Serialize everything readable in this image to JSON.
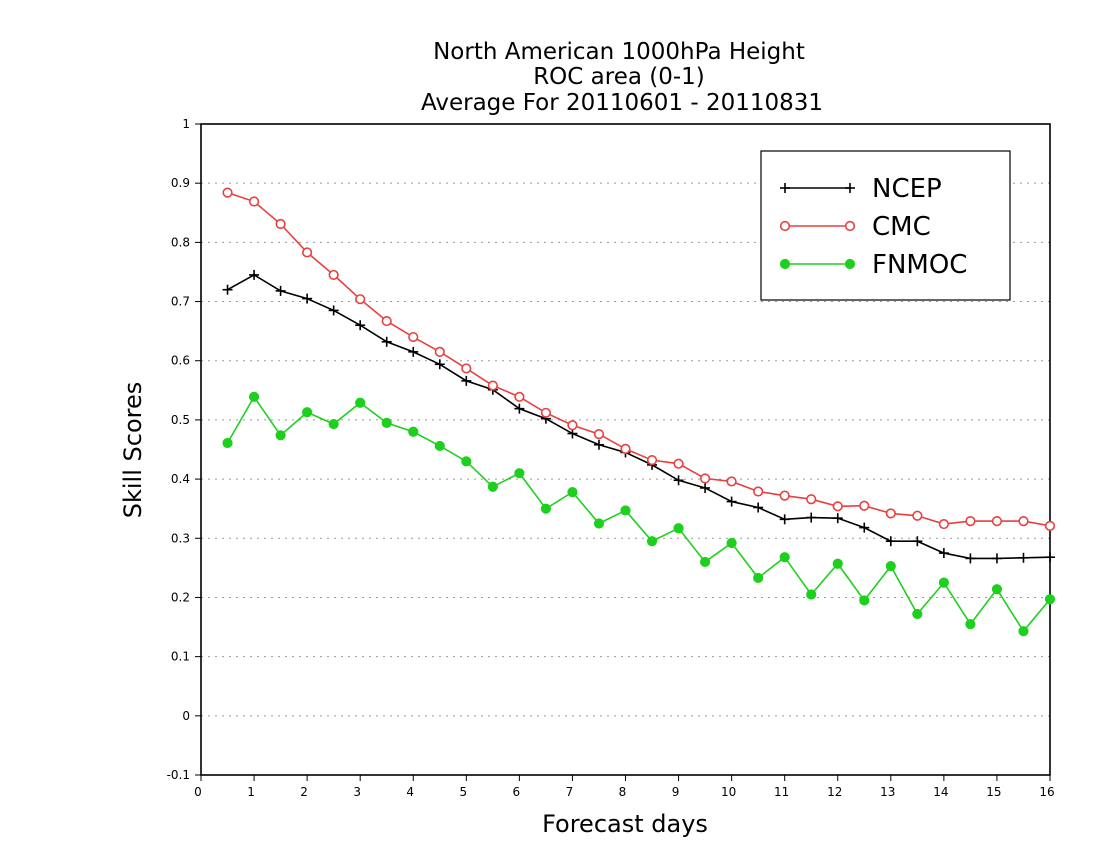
{
  "chart_data": {
    "type": "line",
    "title": [
      "North American 1000hPa Height",
      "ROC area (0-1)",
      "Average For 20110601 - 20110831"
    ],
    "xlabel": "Forecast days",
    "ylabel": "Skill Scores",
    "xlim": [
      0,
      16
    ],
    "ylim": [
      -0.1,
      1
    ],
    "xticks": [
      0,
      1,
      2,
      3,
      4,
      5,
      6,
      7,
      8,
      9,
      10,
      11,
      12,
      13,
      14,
      15,
      16
    ],
    "xtick_labels": [
      "0",
      "1",
      "2",
      "3",
      "4",
      "5",
      "6",
      "7",
      "8",
      "9",
      "10",
      "11",
      "12",
      "13",
      "14",
      "15",
      "16"
    ],
    "yticks": [
      -0.1,
      0,
      0.1,
      0.2,
      0.3,
      0.4,
      0.5,
      0.6,
      0.7,
      0.8,
      0.9,
      1
    ],
    "ytick_labels": [
      "-0.1",
      "0",
      "0.1",
      "0.2",
      "0.3",
      "0.4",
      "0.5",
      "0.6",
      "0.7",
      "0.8",
      "0.9",
      "1"
    ],
    "grid": "horizontal dotted",
    "legend_position": "top-right",
    "x": [
      0.5,
      1,
      1.5,
      2,
      2.5,
      3,
      3.5,
      4,
      4.5,
      5,
      5.5,
      6,
      6.5,
      7,
      7.5,
      8,
      8.5,
      9,
      9.5,
      10,
      10.5,
      11,
      11.5,
      12,
      12.5,
      13,
      13.5,
      14,
      14.5,
      15,
      15.5,
      16
    ],
    "series": [
      {
        "name": "NCEP",
        "color": "#000000",
        "marker": "plus",
        "values": [
          0.72,
          0.745,
          0.718,
          0.705,
          0.685,
          0.66,
          0.632,
          0.615,
          0.594,
          0.566,
          0.551,
          0.519,
          0.502,
          0.477,
          0.458,
          0.445,
          0.424,
          0.398,
          0.385,
          0.362,
          0.352,
          0.332,
          0.335,
          0.334,
          0.318,
          0.295,
          0.295,
          0.275,
          0.266,
          0.266,
          0.267,
          0.268
        ]
      },
      {
        "name": "CMC",
        "color": "#e8403f",
        "marker": "open-circle",
        "values": [
          0.884,
          0.869,
          0.831,
          0.783,
          0.745,
          0.704,
          0.667,
          0.64,
          0.615,
          0.587,
          0.558,
          0.539,
          0.512,
          0.491,
          0.476,
          0.451,
          0.432,
          0.426,
          0.401,
          0.396,
          0.379,
          0.372,
          0.366,
          0.354,
          0.355,
          0.342,
          0.338,
          0.324,
          0.329,
          0.329,
          0.329,
          0.321
        ]
      },
      {
        "name": "FNMOC",
        "color": "#1ed01e",
        "marker": "filled-circle",
        "values": [
          0.461,
          0.539,
          0.474,
          0.513,
          0.493,
          0.529,
          0.495,
          0.48,
          0.456,
          0.43,
          0.387,
          0.41,
          0.35,
          0.378,
          0.325,
          0.347,
          0.295,
          0.317,
          0.26,
          0.292,
          0.233,
          0.268,
          0.205,
          0.257,
          0.195,
          0.253,
          0.172,
          0.225,
          0.155,
          0.214,
          0.143,
          0.197
        ]
      }
    ]
  }
}
